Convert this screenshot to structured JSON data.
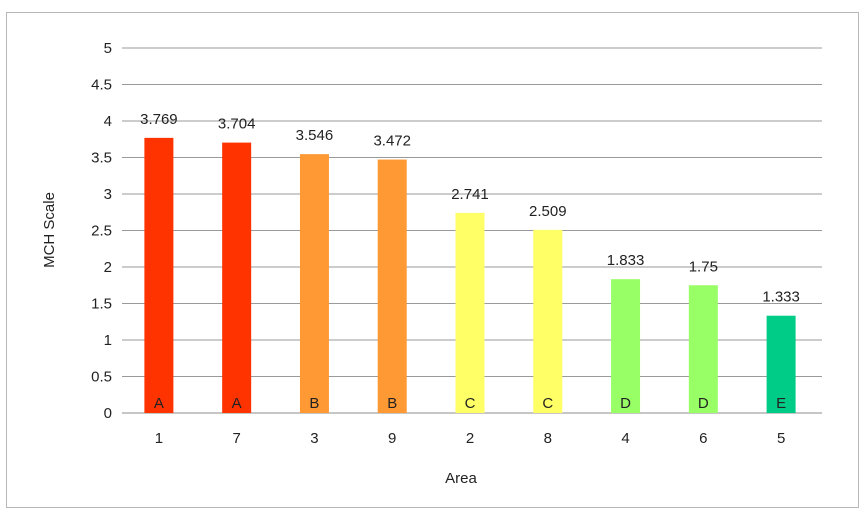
{
  "chart_data": {
    "type": "bar",
    "title": "",
    "xlabel": "Area",
    "ylabel": "MCH Scale",
    "ylim": [
      0,
      5
    ],
    "yticks": [
      "0",
      "0.5",
      "1",
      "1.5",
      "2",
      "2.5",
      "3",
      "3.5",
      "4",
      "4.5",
      "5"
    ],
    "grid": true,
    "legend": "none",
    "categories": [
      "1",
      "7",
      "3",
      "9",
      "2",
      "8",
      "4",
      "6",
      "5"
    ],
    "values": [
      3.769,
      3.704,
      3.546,
      3.472,
      2.741,
      2.509,
      1.833,
      1.75,
      1.333
    ],
    "value_labels": [
      "3.769",
      "3.704",
      "3.546",
      "3.472",
      "2.741",
      "2.509",
      "1.833",
      "1.75",
      "1.333"
    ],
    "class_labels": [
      "A",
      "A",
      "B",
      "B",
      "C",
      "C",
      "D",
      "D",
      "E"
    ],
    "class_colors": {
      "A": "#ff3300",
      "B": "#ff9933",
      "C": "#ffff66",
      "D": "#99ff66",
      "E": "#00cc88"
    }
  }
}
